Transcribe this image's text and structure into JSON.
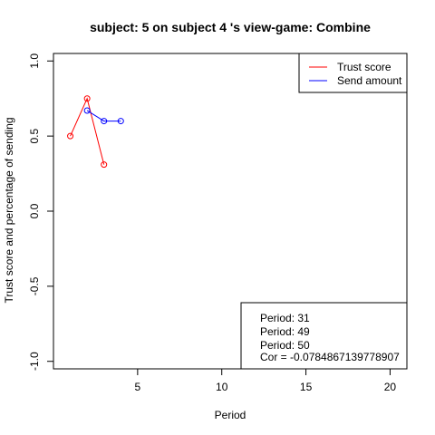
{
  "chart_data": {
    "type": "line",
    "title": "subject:  5  on subject  4 's view-game:  Combine",
    "xlabel": "Period",
    "ylabel": "Trust score and percentage of sending",
    "xlim": [
      0,
      21
    ],
    "ylim": [
      -1.05,
      1.05
    ],
    "x_ticks": [
      5,
      10,
      15,
      20
    ],
    "x_tick_labels": [
      "5",
      "10",
      "15",
      "20"
    ],
    "y_ticks": [
      -1.0,
      -0.5,
      0.0,
      0.5,
      1.0
    ],
    "y_tick_labels": [
      "-1.0",
      "-0.5",
      "0.0",
      "0.5",
      "1.0"
    ],
    "grid": false,
    "series": [
      {
        "name": "Trust score",
        "color": "#ff0000",
        "points": [
          [
            1,
            0.5
          ],
          [
            2,
            0.75
          ],
          [
            3,
            0.31
          ]
        ]
      },
      {
        "name": "Send amount",
        "color": "#0000ff",
        "points": [
          [
            2,
            0.67
          ],
          [
            3,
            0.6
          ],
          [
            4,
            0.6
          ]
        ]
      }
    ],
    "legend": {
      "position": "top-right",
      "entries": [
        "Trust score",
        "Send amount"
      ]
    },
    "info_box": {
      "position": "bottom-right",
      "lines": [
        "Period:  31",
        "Period:  49",
        "Period:  50",
        "Cor =  -0.0784867139778907"
      ]
    }
  }
}
